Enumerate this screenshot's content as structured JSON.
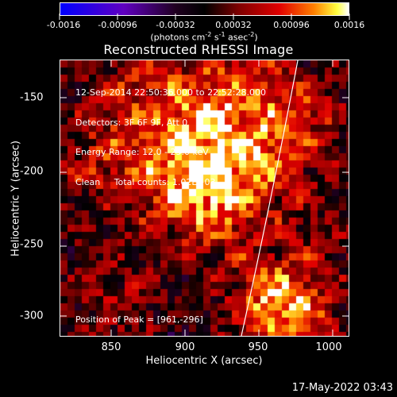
{
  "colorbar": {
    "labels": [
      "-0.0016",
      "-0.00096",
      "-0.00032",
      "0.00032",
      "0.00096",
      "0.0016"
    ],
    "units_prefix": "(photons cm",
    "units_exp1": "-2",
    "units_mid1": " s",
    "units_exp2": "-1",
    "units_mid2": " asec",
    "units_exp3": "-2",
    "units_suffix": ")",
    "range": [
      -0.0016,
      0.0016
    ]
  },
  "title": "Reconstructed RHESSI Image",
  "info": {
    "line1": "12-Sep-2014 22:50:36.000 to 22:52:28.000",
    "line2": "Detectors: 3F 6F 9F, Att 0",
    "line3": "Energy Range: 12.0 - 25.0 keV",
    "line4": "Clean     Total counts: 1.02E+03"
  },
  "peak": "Position of Peak = [961,-296]",
  "axes": {
    "xlabel": "Heliocentric X (arcsec)",
    "ylabel": "Heliocentric Y (arcsec)",
    "xlim": [
      815,
      1000
    ],
    "ylim": [
      -315,
      -135
    ],
    "xticks": [
      "850",
      "900",
      "950",
      "1000"
    ],
    "yticks": [
      "-150",
      "-200",
      "-250",
      "-300"
    ]
  },
  "footer": {
    "date": "17-May-2022 03:43"
  },
  "colors": {
    "low": "#0000ff",
    "mid": "#000000",
    "high": "#ffffff",
    "accent": "#ff8000"
  }
}
